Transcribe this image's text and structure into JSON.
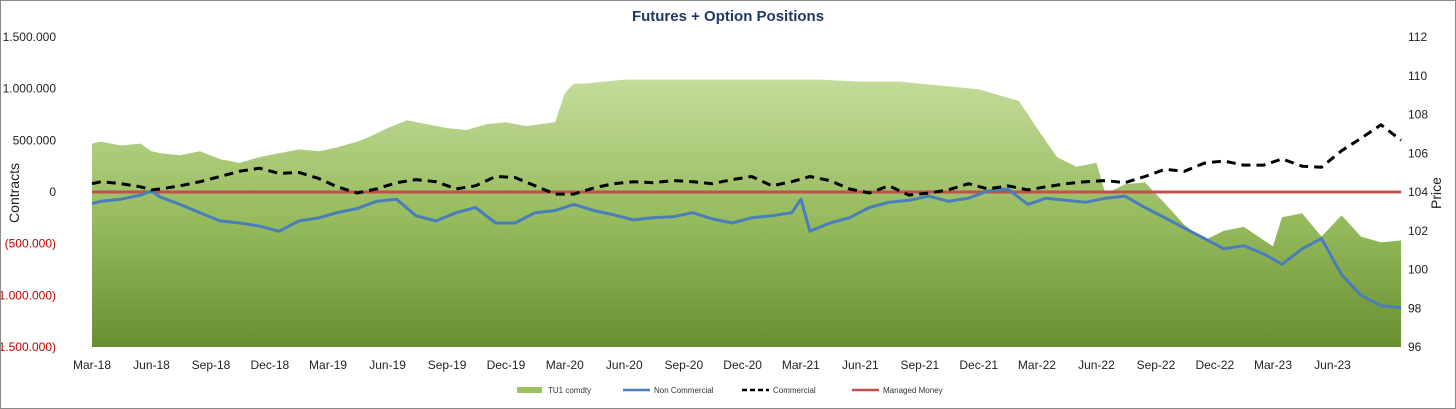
{
  "chart_data": {
    "type": "line",
    "title": "Futures + Option Positions",
    "ylabel": "Contracts",
    "y2label": "Price",
    "ylim": [
      -1500000,
      1500000
    ],
    "y2lim": [
      96,
      112
    ],
    "xlim": [
      "2018-03",
      "2023-09"
    ],
    "left_ticks": [
      {
        "value": 1500000,
        "label": "1.500.000"
      },
      {
        "value": 1000000,
        "label": "1.000.000"
      },
      {
        "value": 500000,
        "label": "500.000"
      },
      {
        "value": 0,
        "label": "0"
      },
      {
        "value": -500000,
        "label": "(500.000)"
      },
      {
        "value": -1000000,
        "label": "(1.000.000)"
      },
      {
        "value": -1500000,
        "label": "(1.500.000)"
      }
    ],
    "right_ticks": [
      {
        "value": 112,
        "label": "112"
      },
      {
        "value": 110,
        "label": "110"
      },
      {
        "value": 108,
        "label": "108"
      },
      {
        "value": 106,
        "label": "106"
      },
      {
        "value": 104,
        "label": "104"
      },
      {
        "value": 102,
        "label": "102"
      },
      {
        "value": 100,
        "label": "100"
      },
      {
        "value": 98,
        "label": "98"
      },
      {
        "value": 96,
        "label": "96"
      }
    ],
    "x_ticks": [
      {
        "date": "2018-03",
        "label": "Mar-18"
      },
      {
        "date": "2018-06",
        "label": "Jun-18"
      },
      {
        "date": "2018-09",
        "label": "Sep-18"
      },
      {
        "date": "2018-12",
        "label": "Dec-18"
      },
      {
        "date": "2019-03",
        "label": "Mar-19"
      },
      {
        "date": "2019-06",
        "label": "Jun-19"
      },
      {
        "date": "2019-09",
        "label": "Sep-19"
      },
      {
        "date": "2019-12",
        "label": "Dec-19"
      },
      {
        "date": "2020-03",
        "label": "Mar-20"
      },
      {
        "date": "2020-06",
        "label": "Jun-20"
      },
      {
        "date": "2020-09",
        "label": "Sep-20"
      },
      {
        "date": "2020-12",
        "label": "Dec-20"
      },
      {
        "date": "2021-03",
        "label": "Mar-21"
      },
      {
        "date": "2021-06",
        "label": "Jun-21"
      },
      {
        "date": "2021-09",
        "label": "Sep-21"
      },
      {
        "date": "2021-12",
        "label": "Dec-21"
      },
      {
        "date": "2022-03",
        "label": "Mar-22"
      },
      {
        "date": "2022-06",
        "label": "Jun-22"
      },
      {
        "date": "2022-09",
        "label": "Sep-22"
      },
      {
        "date": "2022-12",
        "label": "Dec-22"
      },
      {
        "date": "2023-03",
        "label": "Mar-23"
      },
      {
        "date": "2023-06",
        "label": "Jun-23"
      }
    ],
    "legend_position": "bottom",
    "grid": false,
    "series": [
      {
        "name": "TU1 comdty",
        "kind": "area",
        "axis": "right",
        "color": "#8db050",
        "dates": [
          "2018-03-01",
          "2018-03-15",
          "2018-04-15",
          "2018-05-15",
          "2018-06-01",
          "2018-06-15",
          "2018-07-15",
          "2018-08-15",
          "2018-09-15",
          "2018-10-15",
          "2018-11-15",
          "2018-12-15",
          "2019-01-15",
          "2019-02-15",
          "2019-03-15",
          "2019-04-15",
          "2019-05-01",
          "2019-06-01",
          "2019-07-01",
          "2019-08-01",
          "2019-09-01",
          "2019-10-01",
          "2019-11-01",
          "2019-12-01",
          "2020-01-01",
          "2020-02-15",
          "2020-03-01",
          "2020-03-15",
          "2020-04-01",
          "2020-05-01",
          "2020-06-01",
          "2020-08-01",
          "2020-10-01",
          "2020-12-01",
          "2021-02-01",
          "2021-04-01",
          "2021-06-01",
          "2021-08-01",
          "2021-10-01",
          "2021-12-01",
          "2022-01-01",
          "2022-02-01",
          "2022-03-01",
          "2022-04-01",
          "2022-05-01",
          "2022-06-01",
          "2022-06-15",
          "2022-07-15",
          "2022-08-15",
          "2022-09-15",
          "2022-10-15",
          "2022-11-15",
          "2022-12-15",
          "2023-01-15",
          "2023-02-15",
          "2023-03-01",
          "2023-03-15",
          "2023-04-15",
          "2023-05-15",
          "2023-06-15",
          "2023-07-15",
          "2023-08-15",
          "2023-09-15"
        ],
        "values": [
          106.5,
          106.6,
          106.4,
          106.5,
          106.1,
          106.0,
          105.9,
          106.1,
          105.7,
          105.5,
          105.8,
          106.0,
          106.2,
          106.1,
          106.3,
          106.6,
          106.8,
          107.3,
          107.7,
          107.5,
          107.3,
          107.2,
          107.5,
          107.6,
          107.4,
          107.6,
          109.1,
          109.6,
          109.6,
          109.7,
          109.8,
          109.8,
          109.8,
          109.8,
          109.8,
          109.8,
          109.7,
          109.7,
          109.5,
          109.3,
          109.0,
          108.7,
          107.3,
          105.8,
          105.3,
          105.5,
          103.9,
          104.4,
          104.5,
          103.4,
          102.3,
          101.5,
          102.0,
          102.2,
          101.5,
          101.2,
          102.7,
          102.9,
          101.7,
          102.8,
          101.7,
          101.4,
          101.5
        ]
      },
      {
        "name": "Non Commercial",
        "kind": "line",
        "axis": "left",
        "color": "#4a7ebb",
        "dates": [
          "2018-03-01",
          "2018-03-15",
          "2018-04-15",
          "2018-05-15",
          "2018-06-01",
          "2018-06-15",
          "2018-07-15",
          "2018-08-15",
          "2018-09-15",
          "2018-10-15",
          "2018-11-15",
          "2018-12-15",
          "2019-01-15",
          "2019-02-15",
          "2019-03-15",
          "2019-04-15",
          "2019-05-15",
          "2019-06-15",
          "2019-07-15",
          "2019-08-15",
          "2019-09-15",
          "2019-10-15",
          "2019-11-15",
          "2019-12-15",
          "2020-01-15",
          "2020-02-15",
          "2020-03-15",
          "2020-04-15",
          "2020-05-15",
          "2020-06-15",
          "2020-07-15",
          "2020-08-15",
          "2020-09-15",
          "2020-10-15",
          "2020-11-15",
          "2020-12-15",
          "2021-01-15",
          "2021-02-15",
          "2021-03-01",
          "2021-03-15",
          "2021-04-15",
          "2021-05-15",
          "2021-06-15",
          "2021-07-15",
          "2021-08-15",
          "2021-09-15",
          "2021-10-15",
          "2021-11-15",
          "2021-12-15",
          "2022-01-15",
          "2022-02-15",
          "2022-03-15",
          "2022-04-15",
          "2022-05-15",
          "2022-06-15",
          "2022-07-15",
          "2022-08-15",
          "2022-09-15",
          "2022-10-15",
          "2022-11-15",
          "2022-12-15",
          "2023-01-15",
          "2023-02-15",
          "2023-03-15",
          "2023-04-15",
          "2023-05-15",
          "2023-06-15",
          "2023-07-15",
          "2023-08-15",
          "2023-09-15"
        ],
        "values": [
          -110000,
          -90000,
          -70000,
          -30000,
          10000,
          -50000,
          -120000,
          -200000,
          -280000,
          -300000,
          -330000,
          -380000,
          -280000,
          -250000,
          -200000,
          -160000,
          -90000,
          -70000,
          -230000,
          -280000,
          -200000,
          -150000,
          -300000,
          -300000,
          -200000,
          -180000,
          -120000,
          -180000,
          -220000,
          -270000,
          -250000,
          -240000,
          -200000,
          -260000,
          -300000,
          -250000,
          -230000,
          -200000,
          -70000,
          -380000,
          -300000,
          -250000,
          -150000,
          -100000,
          -80000,
          -40000,
          -90000,
          -60000,
          10000,
          30000,
          -120000,
          -60000,
          -80000,
          -100000,
          -60000,
          -40000,
          -150000,
          -250000,
          -350000,
          -450000,
          -550000,
          -520000,
          -600000,
          -700000,
          -550000,
          -450000,
          -800000,
          -1000000,
          -1100000,
          -1120000
        ]
      },
      {
        "name": "Commercial",
        "kind": "line",
        "axis": "left",
        "dash": true,
        "color": "#000000",
        "dates": [
          "2018-03-01",
          "2018-03-15",
          "2018-04-15",
          "2018-05-15",
          "2018-06-01",
          "2018-06-15",
          "2018-07-15",
          "2018-08-15",
          "2018-09-15",
          "2018-10-15",
          "2018-11-15",
          "2018-12-15",
          "2019-01-15",
          "2019-02-15",
          "2019-03-15",
          "2019-04-15",
          "2019-05-15",
          "2019-06-15",
          "2019-07-15",
          "2019-08-15",
          "2019-09-15",
          "2019-10-15",
          "2019-11-15",
          "2019-12-15",
          "2020-01-15",
          "2020-02-15",
          "2020-03-15",
          "2020-04-15",
          "2020-05-15",
          "2020-06-15",
          "2020-07-15",
          "2020-08-15",
          "2020-09-15",
          "2020-10-15",
          "2020-11-15",
          "2020-12-15",
          "2021-01-15",
          "2021-02-15",
          "2021-03-15",
          "2021-04-15",
          "2021-05-15",
          "2021-06-15",
          "2021-07-15",
          "2021-08-15",
          "2021-09-15",
          "2021-10-15",
          "2021-11-15",
          "2021-12-15",
          "2022-01-15",
          "2022-02-15",
          "2022-03-15",
          "2022-04-15",
          "2022-05-15",
          "2022-06-15",
          "2022-07-15",
          "2022-08-15",
          "2022-09-15",
          "2022-10-15",
          "2022-11-15",
          "2022-12-15",
          "2023-01-15",
          "2023-02-15",
          "2023-03-15",
          "2023-04-15",
          "2023-05-15",
          "2023-06-15",
          "2023-07-15",
          "2023-08-15",
          "2023-09-15"
        ],
        "values": [
          80000,
          100000,
          80000,
          50000,
          20000,
          30000,
          60000,
          100000,
          150000,
          200000,
          230000,
          180000,
          190000,
          130000,
          50000,
          -10000,
          30000,
          90000,
          120000,
          100000,
          30000,
          60000,
          150000,
          140000,
          60000,
          -20000,
          -20000,
          40000,
          80000,
          100000,
          90000,
          110000,
          100000,
          80000,
          120000,
          150000,
          60000,
          100000,
          150000,
          110000,
          30000,
          -10000,
          60000,
          -30000,
          -10000,
          20000,
          80000,
          30000,
          60000,
          20000,
          50000,
          80000,
          100000,
          110000,
          90000,
          150000,
          220000,
          200000,
          280000,
          300000,
          260000,
          260000,
          320000,
          250000,
          240000,
          400000,
          520000,
          650000,
          500000
        ]
      },
      {
        "name": "Managed Money",
        "kind": "line",
        "axis": "left",
        "color": "#c0504d",
        "dates": [
          "2018-03-01",
          "2023-09-15"
        ],
        "values": [
          0,
          0
        ]
      }
    ]
  }
}
